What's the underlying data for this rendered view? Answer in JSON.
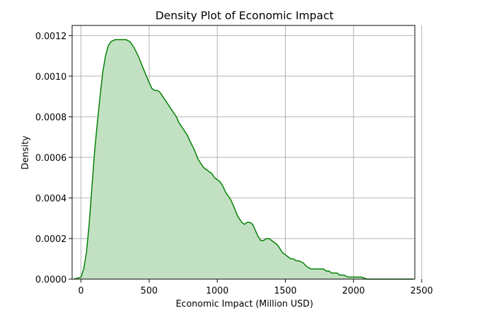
{
  "chart_data": {
    "type": "area",
    "title": "Density Plot of Economic Impact",
    "xlabel": "Economic Impact (Million USD)",
    "ylabel": "Density",
    "xlim": [
      -65,
      2450
    ],
    "ylim": [
      0,
      0.00125
    ],
    "xticks": [
      0,
      500,
      1000,
      1500,
      2000,
      2500
    ],
    "xtick_labels": [
      "0",
      "500",
      "1000",
      "1500",
      "2000",
      "2500"
    ],
    "yticks": [
      0,
      0.0002,
      0.0004,
      0.0006,
      0.0008,
      0.001,
      0.0012
    ],
    "ytick_labels": [
      "0.0000",
      "0.0002",
      "0.0004",
      "0.0006",
      "0.0008",
      "0.0010",
      "0.0012"
    ],
    "grid": true,
    "line_color": "#008000",
    "fill_color": "#c2e0c2",
    "series": [
      {
        "x": [
          -50,
          0,
          20,
          40,
          60,
          80,
          100,
          120,
          140,
          160,
          180,
          200,
          220,
          250,
          280,
          300,
          330,
          360,
          390,
          420,
          450,
          480,
          500,
          520,
          540,
          560,
          580,
          600,
          620,
          650,
          680,
          700,
          720,
          740,
          760,
          780,
          800,
          830,
          860,
          880,
          900,
          920,
          940,
          960,
          980,
          1000,
          1020,
          1040,
          1060,
          1080,
          1100,
          1120,
          1150,
          1180,
          1200,
          1220,
          1240,
          1260,
          1280,
          1300,
          1320,
          1340,
          1360,
          1380,
          1400,
          1420,
          1440,
          1460,
          1480,
          1500,
          1520,
          1540,
          1560,
          1580,
          1600,
          1630,
          1660,
          1690,
          1720,
          1750,
          1780,
          1800,
          1820,
          1840,
          1860,
          1880,
          1900,
          1930,
          1960,
          1990,
          2020,
          2060,
          2100,
          2150,
          2200,
          2250,
          2300,
          2350,
          2400,
          2440
        ],
        "y": [
          0,
          1e-05,
          5e-05,
          0.00013,
          0.00027,
          0.00045,
          0.00063,
          0.00077,
          0.0009,
          0.00102,
          0.0011,
          0.00115,
          0.00117,
          0.00118,
          0.00118,
          0.00118,
          0.00118,
          0.00117,
          0.00114,
          0.0011,
          0.00105,
          0.001,
          0.00097,
          0.00094,
          0.00093,
          0.00093,
          0.00092,
          0.0009,
          0.00088,
          0.00085,
          0.00082,
          0.0008,
          0.00077,
          0.00075,
          0.00073,
          0.00071,
          0.00068,
          0.00064,
          0.00059,
          0.00057,
          0.00055,
          0.00054,
          0.00053,
          0.00052,
          0.0005,
          0.00049,
          0.00048,
          0.00046,
          0.00043,
          0.00041,
          0.00039,
          0.00036,
          0.00031,
          0.00028,
          0.00027,
          0.00028,
          0.00028,
          0.00027,
          0.00024,
          0.00021,
          0.00019,
          0.00019,
          0.0002,
          0.0002,
          0.00019,
          0.00018,
          0.00017,
          0.00015,
          0.00013,
          0.00012,
          0.00011,
          0.0001,
          0.0001,
          9e-05,
          9e-05,
          8e-05,
          6e-05,
          5e-05,
          5e-05,
          5e-05,
          5e-05,
          4e-05,
          4e-05,
          3e-05,
          3e-05,
          3e-05,
          2e-05,
          2e-05,
          1e-05,
          1e-05,
          1e-05,
          1e-05,
          0.0,
          0.0,
          0.0,
          0.0,
          0.0,
          0.0,
          0.0,
          0.0
        ]
      }
    ]
  }
}
